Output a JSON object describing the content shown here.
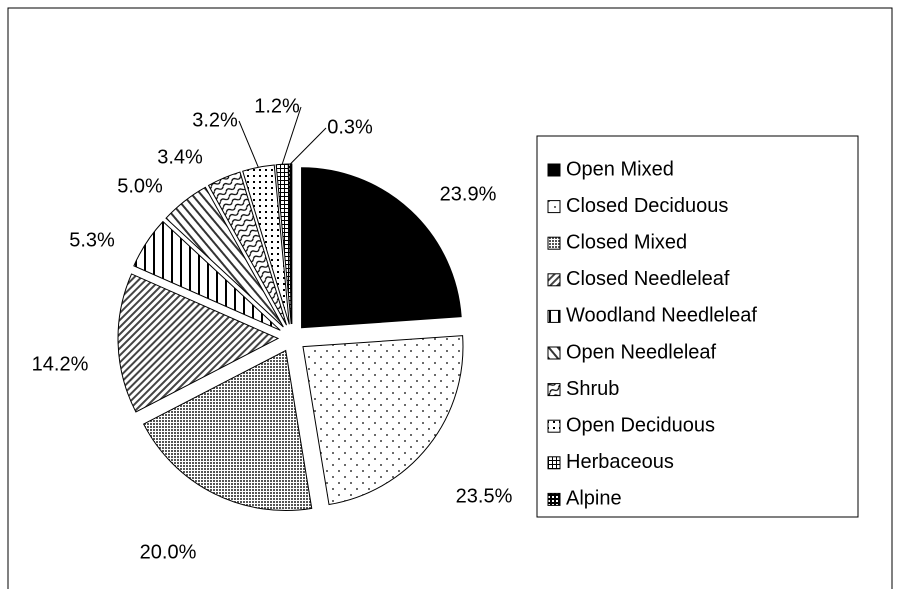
{
  "chart_data": {
    "type": "pie",
    "categories": [
      "Open Mixed",
      "Closed Deciduous",
      "Closed Mixed",
      "Closed Needleleaf",
      "Woodland Needleleaf",
      "Open Needleleaf",
      "Shrub",
      "Open Deciduous",
      "Herbaceous",
      "Alpine"
    ],
    "values": [
      23.9,
      23.5,
      20,
      14.2,
      5.3,
      5.0,
      3.4,
      3.2,
      1.2,
      0.3
    ],
    "value_labels": [
      "23.9%",
      "23.5%",
      "20.0%",
      "14.2%",
      "5.3%",
      "5.0%",
      "3.4%",
      "3.2%",
      "1.2%",
      "0.3%"
    ],
    "legend": "right"
  }
}
